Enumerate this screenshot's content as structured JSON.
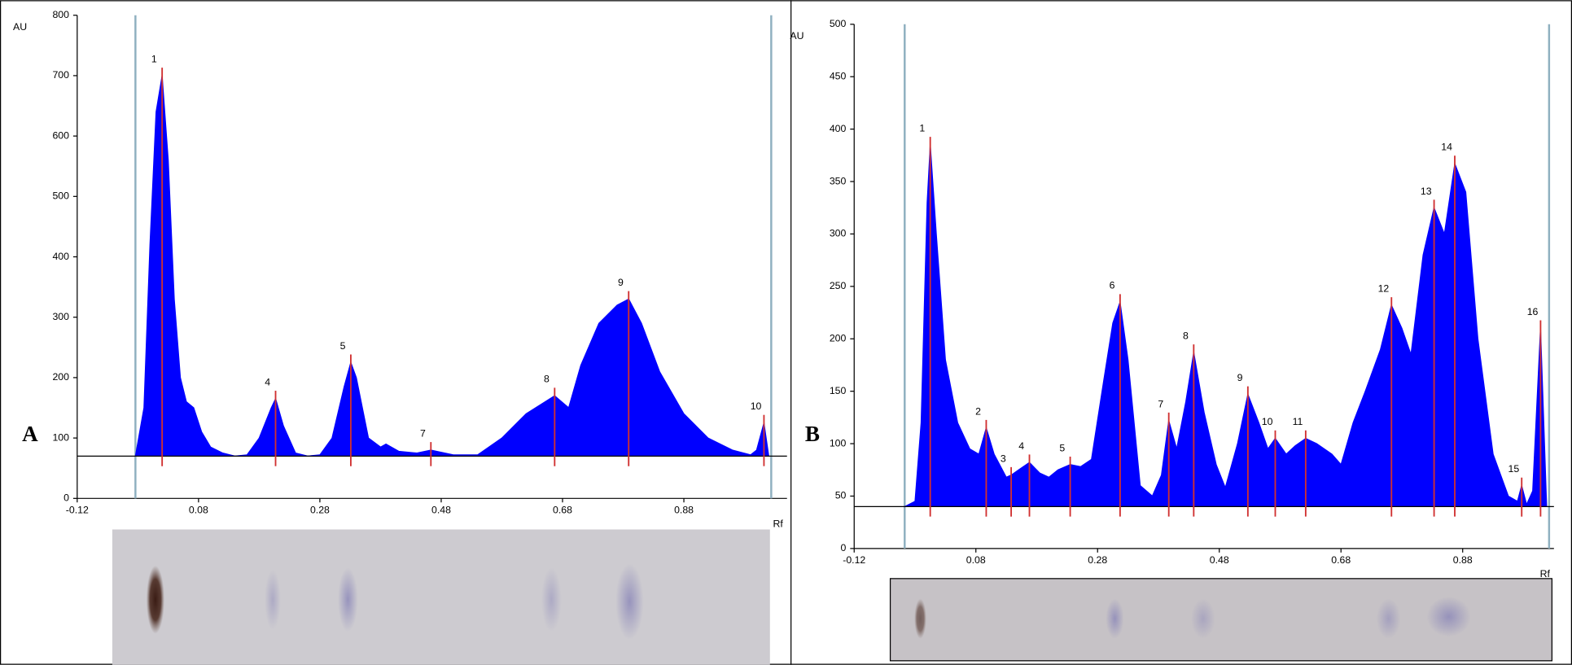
{
  "chart_data": [
    {
      "type": "area",
      "panel_label": "A",
      "y_label": "AU",
      "x_label": "Rf",
      "color": "#0000ff",
      "peak_color": "#d03030",
      "bound_color": "#8fb0c0",
      "xlim": [
        -0.12,
        1.05
      ],
      "ylim": [
        0,
        800
      ],
      "xticks": [
        -0.12,
        0.08,
        0.28,
        0.48,
        0.68,
        0.88
      ],
      "yticks": [
        0,
        100,
        200,
        300,
        400,
        500,
        600,
        700,
        800
      ],
      "baseline": 70,
      "bounds": [
        -0.024,
        1.024
      ],
      "x": [
        -0.024,
        -0.01,
        0.0,
        0.01,
        0.02,
        0.03,
        0.04,
        0.05,
        0.06,
        0.072,
        0.085,
        0.1,
        0.12,
        0.14,
        0.16,
        0.18,
        0.2,
        0.207,
        0.22,
        0.24,
        0.26,
        0.28,
        0.3,
        0.32,
        0.331,
        0.34,
        0.36,
        0.38,
        0.389,
        0.41,
        0.44,
        0.463,
        0.5,
        0.54,
        0.58,
        0.62,
        0.667,
        0.69,
        0.71,
        0.74,
        0.77,
        0.789,
        0.81,
        0.84,
        0.88,
        0.92,
        0.96,
        0.99,
        1.0,
        1.012,
        1.02
      ],
      "values": [
        70,
        150,
        420,
        640,
        700,
        560,
        330,
        200,
        160,
        150,
        110,
        85,
        75,
        70,
        72,
        100,
        150,
        165,
        120,
        75,
        70,
        72,
        100,
        185,
        225,
        200,
        100,
        85,
        90,
        78,
        75,
        80,
        72,
        72,
        100,
        140,
        170,
        150,
        220,
        290,
        320,
        330,
        290,
        210,
        140,
        100,
        80,
        72,
        80,
        125,
        70
      ],
      "peaks": [
        {
          "x": 0.02,
          "y": 700,
          "label": "1"
        },
        {
          "x": 0.207,
          "y": 165,
          "label": "4"
        },
        {
          "x": 0.331,
          "y": 225,
          "label": "5"
        },
        {
          "x": 0.463,
          "y": 80,
          "label": "7"
        },
        {
          "x": 0.667,
          "y": 170,
          "label": "8"
        },
        {
          "x": 0.789,
          "y": 330,
          "label": "9"
        },
        {
          "x": 1.012,
          "y": 125,
          "label": "10"
        }
      ]
    },
    {
      "type": "area",
      "panel_label": "B",
      "y_label": "AU",
      "x_label": "Rf",
      "color": "#0000ff",
      "peak_color": "#d03030",
      "bound_color": "#8fb0c0",
      "xlim": [
        -0.12,
        1.03
      ],
      "ylim": [
        0,
        500
      ],
      "xticks": [
        -0.12,
        0.08,
        0.28,
        0.48,
        0.68,
        0.88
      ],
      "yticks": [
        0,
        50,
        100,
        150,
        200,
        250,
        300,
        350,
        400,
        450,
        500
      ],
      "baseline": 40,
      "bounds": [
        -0.037,
        1.022
      ],
      "x": [
        -0.037,
        -0.02,
        -0.01,
        0.0,
        0.005,
        0.015,
        0.03,
        0.05,
        0.07,
        0.085,
        0.097,
        0.11,
        0.13,
        0.138,
        0.15,
        0.168,
        0.185,
        0.2,
        0.215,
        0.235,
        0.252,
        0.27,
        0.29,
        0.305,
        0.317,
        0.33,
        0.35,
        0.37,
        0.385,
        0.397,
        0.41,
        0.425,
        0.438,
        0.455,
        0.475,
        0.49,
        0.51,
        0.527,
        0.545,
        0.56,
        0.572,
        0.59,
        0.605,
        0.622,
        0.64,
        0.665,
        0.68,
        0.7,
        0.72,
        0.745,
        0.763,
        0.78,
        0.795,
        0.815,
        0.833,
        0.85,
        0.867,
        0.885,
        0.905,
        0.93,
        0.955,
        0.97,
        0.977,
        0.985,
        0.995,
        1.008,
        1.018
      ],
      "values": [
        40,
        45,
        120,
        330,
        385,
        300,
        180,
        120,
        95,
        90,
        115,
        90,
        68,
        70,
        75,
        82,
        72,
        68,
        75,
        80,
        78,
        85,
        160,
        215,
        235,
        180,
        60,
        50,
        70,
        122,
        95,
        140,
        187,
        130,
        80,
        58,
        100,
        147,
        120,
        95,
        105,
        90,
        98,
        105,
        100,
        90,
        80,
        120,
        150,
        190,
        232,
        210,
        185,
        280,
        325,
        300,
        367,
        340,
        200,
        90,
        50,
        45,
        60,
        42,
        55,
        210,
        40
      ],
      "peaks": [
        {
          "x": 0.005,
          "y": 385,
          "label": "1"
        },
        {
          "x": 0.097,
          "y": 115,
          "label": "2"
        },
        {
          "x": 0.138,
          "y": 70,
          "label": "3"
        },
        {
          "x": 0.168,
          "y": 82,
          "label": "4"
        },
        {
          "x": 0.235,
          "y": 80,
          "label": "5"
        },
        {
          "x": 0.317,
          "y": 235,
          "label": "6"
        },
        {
          "x": 0.397,
          "y": 122,
          "label": "7"
        },
        {
          "x": 0.438,
          "y": 187,
          "label": "8"
        },
        {
          "x": 0.527,
          "y": 147,
          "label": "9"
        },
        {
          "x": 0.572,
          "y": 105,
          "label": "10"
        },
        {
          "x": 0.622,
          "y": 105,
          "label": "11"
        },
        {
          "x": 0.763,
          "y": 232,
          "label": "12"
        },
        {
          "x": 0.833,
          "y": 325,
          "label": "13"
        },
        {
          "x": 0.867,
          "y": 367,
          "label": "14"
        },
        {
          "x": 0.977,
          "y": 60,
          "label": "15"
        },
        {
          "x": 1.008,
          "y": 210,
          "label": "16"
        }
      ]
    }
  ]
}
